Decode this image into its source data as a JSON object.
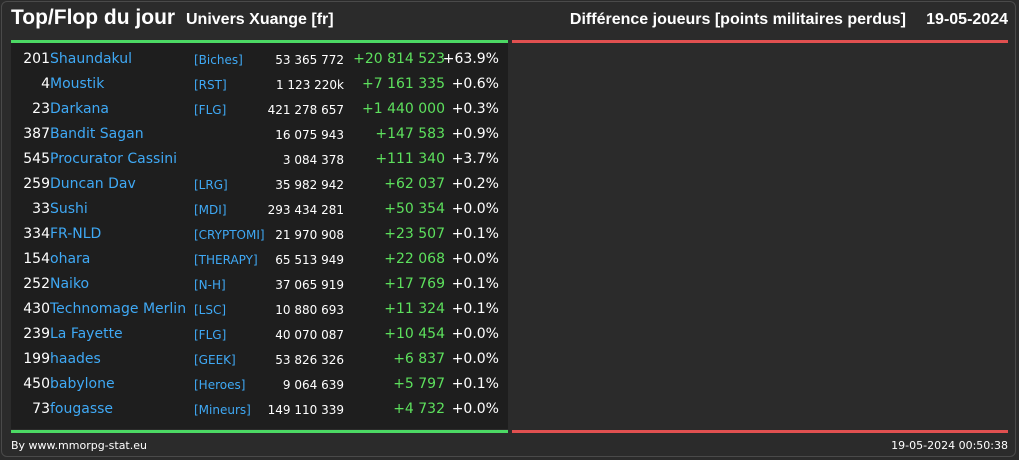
{
  "header": {
    "title": "Top/Flop du jour",
    "universe": "Univers Xuange [fr]",
    "metric": "Différence joueurs [points militaires perdus]",
    "date": "19-05-2024"
  },
  "colors": {
    "background": "#2b2b2b",
    "panel": "#1e1e1e",
    "top_accent": "#4cd964",
    "flop_accent": "#e05050",
    "link": "#3fa9f5",
    "gain": "#5de05d"
  },
  "top": [
    {
      "rank": "201",
      "name": "Shaundakul",
      "alliance": "[Biches]",
      "points": "53 365 772",
      "diff": "+20 814 523",
      "pct": "+63.9%"
    },
    {
      "rank": "4",
      "name": "Moustik",
      "alliance": "[RST]",
      "points": "1 123 220k",
      "diff": "+7 161 335",
      "pct": "+0.6%"
    },
    {
      "rank": "23",
      "name": "Darkana",
      "alliance": "[FLG]",
      "points": "421 278 657",
      "diff": "+1 440 000",
      "pct": "+0.3%"
    },
    {
      "rank": "387",
      "name": "Bandit Sagan",
      "alliance": "",
      "points": "16 075 943",
      "diff": "+147 583",
      "pct": "+0.9%"
    },
    {
      "rank": "545",
      "name": "Procurator Cassini",
      "alliance": "",
      "points": "3 084 378",
      "diff": "+111 340",
      "pct": "+3.7%"
    },
    {
      "rank": "259",
      "name": "Duncan Dav",
      "alliance": "[LRG]",
      "points": "35 982 942",
      "diff": "+62 037",
      "pct": "+0.2%"
    },
    {
      "rank": "33",
      "name": "Sushi",
      "alliance": "[MDI]",
      "points": "293 434 281",
      "diff": "+50 354",
      "pct": "+0.0%"
    },
    {
      "rank": "334",
      "name": "FR-NLD",
      "alliance": "[CRYPTOMI]",
      "points": "21 970 908",
      "diff": "+23 507",
      "pct": "+0.1%"
    },
    {
      "rank": "154",
      "name": "ohara",
      "alliance": "[THERAPY]",
      "points": "65 513 949",
      "diff": "+22 068",
      "pct": "+0.0%"
    },
    {
      "rank": "252",
      "name": "Naiko",
      "alliance": "[N-H]",
      "points": "37 065 919",
      "diff": "+17 769",
      "pct": "+0.1%"
    },
    {
      "rank": "430",
      "name": "Technomage Merlin",
      "alliance": "[LSC]",
      "points": "10 880 693",
      "diff": "+11 324",
      "pct": "+0.1%"
    },
    {
      "rank": "239",
      "name": "La Fayette",
      "alliance": "[FLG]",
      "points": "40 070 087",
      "diff": "+10 454",
      "pct": "+0.0%"
    },
    {
      "rank": "199",
      "name": "haades",
      "alliance": "[GEEK]",
      "points": "53 826 326",
      "diff": "+6 837",
      "pct": "+0.0%"
    },
    {
      "rank": "450",
      "name": "babylone",
      "alliance": "[Heroes]",
      "points": "9 064 639",
      "diff": "+5 797",
      "pct": "+0.1%"
    },
    {
      "rank": "73",
      "name": "fougasse",
      "alliance": "[Mineurs]",
      "points": "149 110 339",
      "diff": "+4 732",
      "pct": "+0.0%"
    }
  ],
  "footer": {
    "credit": "By www.mmorpg-stat.eu",
    "generated": "19-05-2024 00:50:38"
  }
}
